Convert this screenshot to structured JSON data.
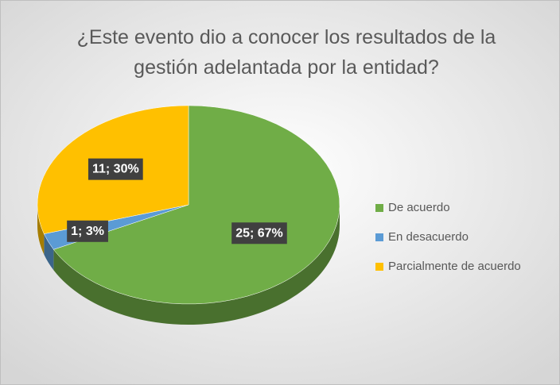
{
  "chart_data": {
    "type": "pie",
    "title": "¿Este evento dio a conocer los resultados de la gestión adelantada por la entidad?",
    "categories": [
      "De acuerdo",
      "En desacuerdo",
      "Parcialmente de acuerdo"
    ],
    "values": [
      25,
      1,
      11
    ],
    "value_labels": [
      "25; 67%",
      "1; 3%",
      "11; 30%"
    ],
    "colors": [
      "#70ad47",
      "#5b9bd5",
      "#ffc000"
    ],
    "legend": "right"
  }
}
